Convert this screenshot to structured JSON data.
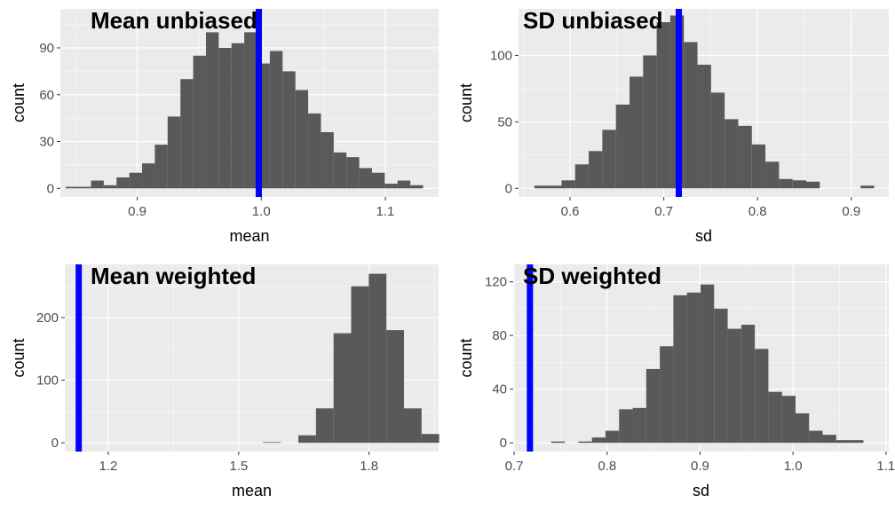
{
  "chart_data": [
    {
      "type": "histogram",
      "title": "Mean unbiased",
      "xlabel": "mean",
      "ylabel": "count",
      "xlim": [
        0.838,
        1.143
      ],
      "ylim": [
        -5.5,
        115
      ],
      "xticks": [
        0.9,
        1.0,
        1.1
      ],
      "xtick_labels": [
        "0.9",
        "1.0",
        "1.1"
      ],
      "yticks": [
        0,
        30,
        60,
        90
      ],
      "bin_width": 0.0103,
      "bin_starts": [
        0.8421,
        0.8524,
        0.8627,
        0.873,
        0.8833,
        0.8936,
        0.9039,
        0.9142,
        0.9245,
        0.9348,
        0.9451,
        0.9554,
        0.9657,
        0.976,
        0.9863,
        0.9966,
        1.0069,
        1.0172,
        1.0275,
        1.0378,
        1.0481,
        1.0584,
        1.0687,
        1.079,
        1.0893,
        1.0996,
        1.1099,
        1.1202
      ],
      "counts": [
        1,
        1,
        5,
        2,
        7,
        10,
        16,
        28,
        46,
        70,
        85,
        100,
        90,
        93,
        100,
        80,
        88,
        75,
        63,
        48,
        36,
        23,
        20,
        13,
        10,
        3,
        5,
        2
      ],
      "vline": 0.998
    },
    {
      "type": "histogram",
      "title": "SD unbiased",
      "xlabel": "sd",
      "ylabel": "count",
      "xlim": [
        0.545,
        0.94
      ],
      "ylim": [
        -6.5,
        135
      ],
      "xticks": [
        0.6,
        0.7,
        0.8,
        0.9
      ],
      "xtick_labels": [
        "0.6",
        "0.7",
        "0.8",
        "0.9"
      ],
      "yticks": [
        0,
        50,
        100
      ],
      "bin_width": 0.0145,
      "bin_starts": [
        0.5619,
        0.5764,
        0.5909,
        0.6054,
        0.6199,
        0.6344,
        0.6489,
        0.6634,
        0.6779,
        0.6924,
        0.7069,
        0.7214,
        0.7359,
        0.7504,
        0.7649,
        0.7794,
        0.7939,
        0.8084,
        0.8229,
        0.8374,
        0.8519,
        0.8664,
        0.8809,
        0.8954,
        0.9099
      ],
      "counts": [
        2,
        2,
        6,
        18,
        28,
        44,
        63,
        84,
        100,
        125,
        130,
        110,
        93,
        72,
        52,
        47,
        33,
        20,
        7,
        6,
        5,
        0,
        0,
        0,
        2
      ],
      "vline": 0.716
    },
    {
      "type": "histogram",
      "title": "Mean weighted",
      "xlabel": "mean",
      "ylabel": "count",
      "xlim": [
        1.1,
        1.96
      ],
      "ylim": [
        -14,
        285
      ],
      "xticks": [
        1.2,
        1.5,
        1.8
      ],
      "xtick_labels": [
        "1.2",
        "1.5",
        "1.8"
      ],
      "yticks": [
        0,
        100,
        200
      ],
      "bin_width": 0.0405,
      "bin_starts": [
        1.5563,
        1.5968,
        1.6373,
        1.6778,
        1.7183,
        1.7588,
        1.7993,
        1.8398,
        1.8803,
        1.9208
      ],
      "counts": [
        1,
        0,
        12,
        55,
        175,
        250,
        270,
        180,
        55,
        14
      ],
      "vline": 1.132
    },
    {
      "type": "histogram",
      "title": "SD weighted",
      "xlabel": "sd",
      "ylabel": "count",
      "xlim": [
        0.699,
        1.103
      ],
      "ylim": [
        -6.5,
        133
      ],
      "xticks": [
        0.7,
        0.8,
        0.9,
        1.0,
        1.1
      ],
      "xtick_labels": [
        "0.7",
        "0.8",
        "0.9",
        "1.0",
        "1.1"
      ],
      "yticks": [
        0,
        40,
        80,
        120
      ],
      "bin_width": 0.0146,
      "bin_starts": [
        0.7399,
        0.7545,
        0.7691,
        0.7837,
        0.7983,
        0.8129,
        0.8275,
        0.8421,
        0.8567,
        0.8713,
        0.8859,
        0.9005,
        0.9151,
        0.9297,
        0.9443,
        0.9589,
        0.9735,
        0.9881,
        1.0027,
        1.0173,
        1.0319,
        1.0465,
        1.0611
      ],
      "counts": [
        1,
        0,
        1,
        4,
        9,
        25,
        26,
        55,
        72,
        110,
        112,
        118,
        100,
        85,
        88,
        70,
        38,
        35,
        22,
        9,
        6,
        2,
        2
      ],
      "vline": 0.717
    }
  ]
}
